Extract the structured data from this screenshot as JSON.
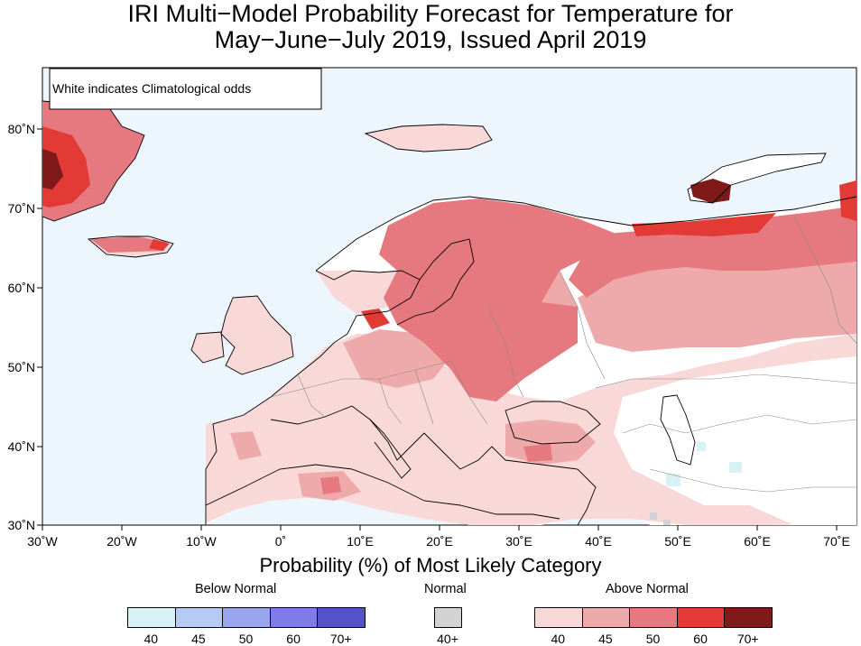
{
  "title": {
    "line1": "IRI Multi−Model Probability Forecast for Temperature for",
    "line2": "May−June−July 2019, Issued April 2019"
  },
  "map": {
    "note": "White indicates Climatological odds",
    "lat_labels": [
      "80˚N",
      "70˚N",
      "60˚N",
      "50˚N",
      "40˚N",
      "30˚N"
    ],
    "lon_labels": [
      "30˚W",
      "20˚W",
      "10˚W",
      "0˚",
      "10˚E",
      "20˚E",
      "30˚E",
      "40˚E",
      "50˚E",
      "60˚E",
      "70˚E"
    ],
    "ocean_color": "#eef6fd"
  },
  "legend": {
    "title": "Probability (%) of Most Likely Category",
    "below": {
      "label": "Below Normal",
      "colors": [
        "#d6f2f7",
        "#b5caf5",
        "#9aa5f0",
        "#7f7ce9",
        "#5551c8"
      ],
      "ticks": [
        "40",
        "45",
        "50",
        "60",
        "70+"
      ]
    },
    "normal": {
      "label": "Normal",
      "colors": [
        "#d3d3d3"
      ],
      "ticks": [
        "40+"
      ]
    },
    "above": {
      "label": "Above Normal",
      "colors": [
        "#f9d8d8",
        "#eeaaab",
        "#e67980",
        "#e33a36",
        "#801a1a"
      ],
      "ticks": [
        "40",
        "45",
        "50",
        "60",
        "70+"
      ]
    }
  }
}
